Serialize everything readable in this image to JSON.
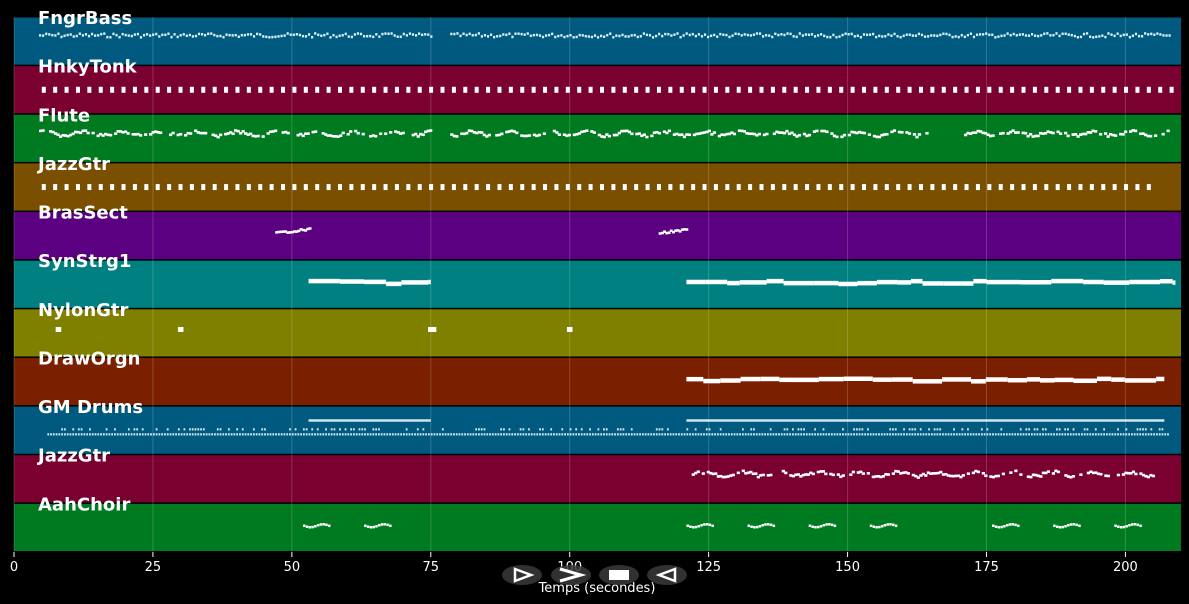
{
  "chart_data": {
    "type": "piano-roll",
    "xlabel": "Temps (secondes)",
    "xlim": [
      0,
      210
    ],
    "xticks": [
      0,
      25,
      50,
      75,
      100,
      125,
      150,
      175,
      200
    ],
    "grid": true,
    "tracks": [
      {
        "name": "FngrBass",
        "color": "#005a80",
        "pattern": "dense",
        "segments": [
          [
            4,
            75
          ],
          [
            78,
            208
          ]
        ]
      },
      {
        "name": "HnkyTonk",
        "color": "#7a0030",
        "pattern": "chords",
        "segments": [
          [
            4,
            208
          ]
        ]
      },
      {
        "name": "Flute",
        "color": "#007a20",
        "pattern": "melody",
        "segments": [
          [
            4,
            75
          ],
          [
            78,
            164
          ],
          [
            170,
            208
          ]
        ]
      },
      {
        "name": "JazzGtr",
        "color": "#7a5000",
        "pattern": "chords",
        "segments": [
          [
            4,
            205
          ]
        ]
      },
      {
        "name": "BrasSect",
        "color": "#5a0080",
        "pattern": "short",
        "segments": [
          [
            47,
            53
          ],
          [
            116,
            121
          ]
        ]
      },
      {
        "name": "SynStrg1",
        "color": "#008080",
        "pattern": "long",
        "segments": [
          [
            53,
            75
          ],
          [
            121,
            209
          ]
        ]
      },
      {
        "name": "NylonGtr",
        "color": "#7f7f00",
        "pattern": "marks",
        "segments": [
          [
            7.5,
            8.5
          ],
          [
            29.5,
            30.5
          ],
          [
            74.5,
            76
          ],
          [
            99.5,
            100.5
          ]
        ]
      },
      {
        "name": "DrawOrgn",
        "color": "#7a2000",
        "pattern": "long",
        "segments": [
          [
            121,
            207
          ]
        ]
      },
      {
        "name": "GM Drums",
        "color": "#005a80",
        "pattern": "drums",
        "segments": [
          [
            6,
            208
          ]
        ]
      },
      {
        "name": "JazzGtr",
        "color": "#7a0030",
        "pattern": "melody",
        "segments": [
          [
            121,
            205
          ]
        ]
      },
      {
        "name": "AahChoir",
        "color": "#007a20",
        "pattern": "phrases",
        "segments": [
          [
            52,
            57
          ],
          [
            63,
            68
          ],
          [
            121,
            126
          ],
          [
            132,
            137
          ],
          [
            143,
            148
          ],
          [
            154,
            159
          ],
          [
            176,
            181
          ],
          [
            187,
            192
          ],
          [
            198,
            203
          ]
        ]
      }
    ]
  },
  "controls": [
    {
      "name": "play-button",
      "icon": "play-icon"
    },
    {
      "name": "forward-button",
      "icon": "forward-icon"
    },
    {
      "name": "stop-button",
      "icon": "stop-icon"
    },
    {
      "name": "rewind-button",
      "icon": "rewind-icon"
    }
  ]
}
